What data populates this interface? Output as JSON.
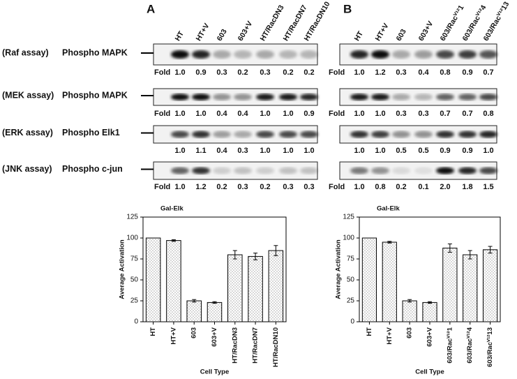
{
  "panels": [
    {
      "label": "A",
      "lanes": [
        "HT",
        "HT+V",
        "603",
        "603+V",
        "HT/RacDN3",
        "HT/RacDN7",
        "HT/RacDN10"
      ],
      "blots": [
        {
          "assay": "(Raf assay)",
          "target": "Phospho MAPK",
          "fold_label": "Fold",
          "folds": [
            "1.0",
            "0.9",
            "0.3",
            "0.2",
            "0.3",
            "0.2",
            "0.2"
          ]
        },
        {
          "assay": "(MEK assay)",
          "target": "Phospho MAPK",
          "fold_label": "Fold",
          "folds": [
            "1.0",
            "1.0",
            "0.4",
            "0.4",
            "1.0",
            "1.0",
            "0.9"
          ]
        },
        {
          "assay": "(ERK assay)",
          "target": "Phospho Elk1",
          "fold_label": "",
          "folds": [
            "1.0",
            "1.1",
            "0.4",
            "0.3",
            "1.0",
            "1.0",
            "1.0"
          ]
        },
        {
          "assay": "(JNK assay)",
          "target": "Phospho c-jun",
          "fold_label": "Fold",
          "folds": [
            "1.0",
            "1.2",
            "0.2",
            "0.3",
            "0.2",
            "0.3",
            "0.3"
          ]
        }
      ]
    },
    {
      "label": "B",
      "lanes": [
        "HT",
        "HT+V",
        "603",
        "603+V",
        "603/Racⱽ¹²1",
        "603/Racⱽ¹²4",
        "603/Racⱽ¹²13"
      ],
      "blots": [
        {
          "fold_label": "Fold",
          "folds": [
            "1.0",
            "1.2",
            "0.3",
            "0.4",
            "0.8",
            "0.9",
            "0.7"
          ]
        },
        {
          "fold_label": "Fold",
          "folds": [
            "1.0",
            "1.0",
            "0.3",
            "0.3",
            "0.7",
            "0.7",
            "0.8"
          ]
        },
        {
          "fold_label": "",
          "folds": [
            "1.0",
            "1.0",
            "0.5",
            "0.5",
            "0.9",
            "0.9",
            "1.0"
          ]
        },
        {
          "fold_label": "Fold",
          "folds": [
            "1.0",
            "0.8",
            "0.2",
            "0.1",
            "2.0",
            "1.8",
            "1.5"
          ]
        }
      ]
    }
  ],
  "chart_data": [
    {
      "type": "bar",
      "title": "Gal-Elk",
      "y_label": "Average Activation",
      "x_label": "Cell Type",
      "categories": [
        "HT",
        "HT+V",
        "603",
        "603+V",
        "HT/RacDN3",
        "HT/RacDN7",
        "HT/RacDN10"
      ],
      "values": [
        100,
        97,
        25,
        23,
        80,
        78,
        85
      ],
      "errors": [
        0,
        1,
        1.5,
        1,
        5,
        4,
        6
      ],
      "ylim": [
        0,
        125
      ],
      "yticks": [
        0,
        25,
        50,
        75,
        100,
        125
      ]
    },
    {
      "type": "bar",
      "title": "Gal-Elk",
      "y_label": "Average Activation",
      "x_label": "Cell Type",
      "categories": [
        "HT",
        "HT+V",
        "603",
        "603+V",
        "603/Racⱽ¹²1",
        "603/Racⱽ¹²4",
        "603/Racⱽ¹²13"
      ],
      "values": [
        100,
        95,
        25,
        23,
        88,
        80,
        86
      ],
      "errors": [
        0,
        1,
        1.5,
        1,
        5,
        5,
        4
      ],
      "ylim": [
        0,
        125
      ],
      "yticks": [
        0,
        25,
        50,
        75,
        100,
        125
      ]
    }
  ]
}
